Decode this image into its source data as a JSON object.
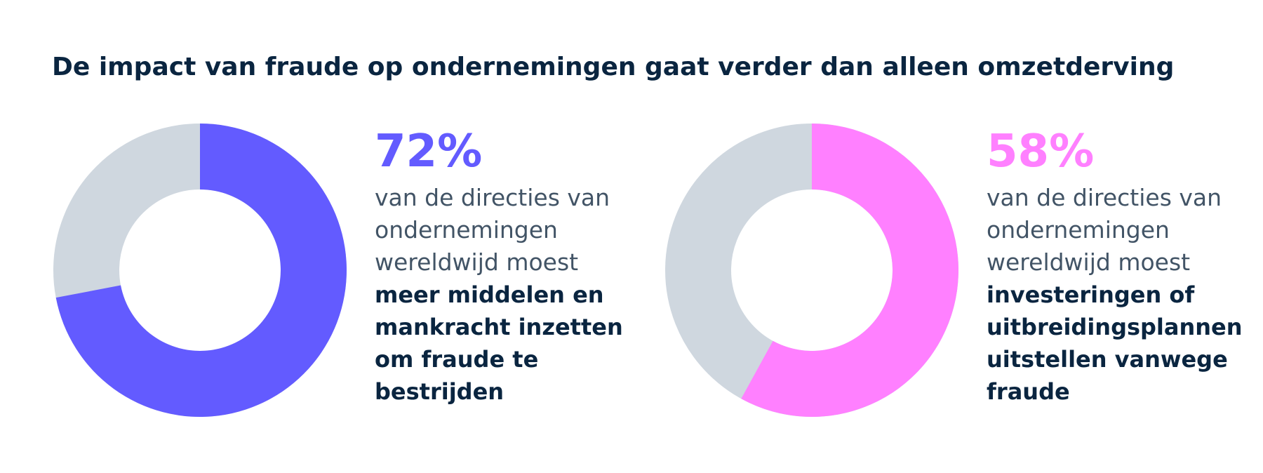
{
  "title": "De impact van fraude op ondernemingen gaat verder dan alleen omzetderving",
  "chart_data": [
    {
      "type": "pie",
      "values": [
        72
      ],
      "value_labels": [
        "72%"
      ],
      "color": "#635bff",
      "track_color": "#cfd7df",
      "description": [
        "van de directies van",
        "ondernemingen",
        "wereldwijd moest"
      ],
      "highlight": [
        "meer middelen en",
        "mankracht inzetten",
        "om fraude te",
        "bestrijden"
      ]
    },
    {
      "type": "pie",
      "values": [
        58
      ],
      "value_labels": [
        "58%"
      ],
      "color": "#ff80ff",
      "track_color": "#cfd7df",
      "description": [
        "van de directies van",
        "ondernemingen",
        "wereldwijd moest"
      ],
      "highlight": [
        "investeringen of",
        "uitbreidingsplannen",
        "uitstellen vanwege",
        "fraude"
      ]
    }
  ]
}
